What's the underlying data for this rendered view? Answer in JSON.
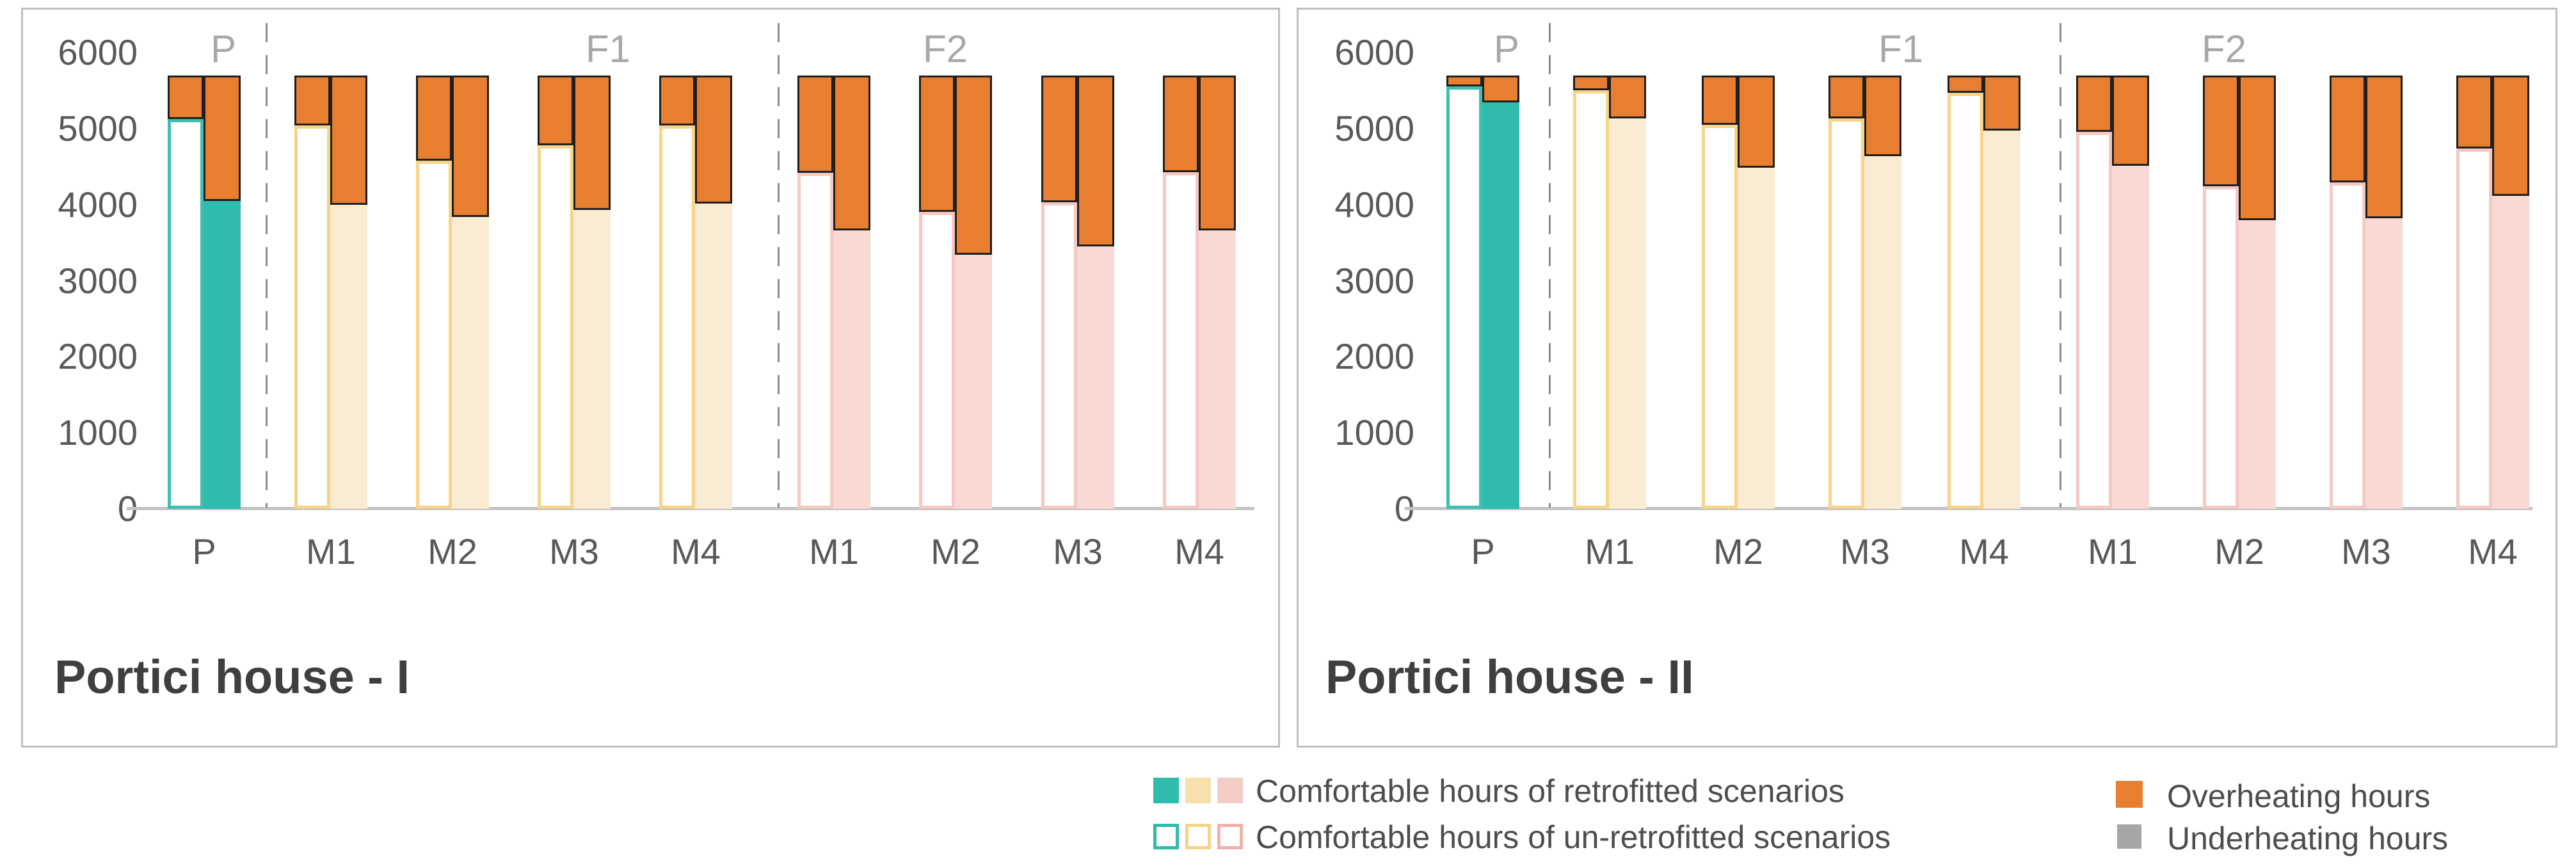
{
  "chart_data": [
    {
      "type": "bar",
      "title": "Portici house - I",
      "ylabel": "",
      "xlabel": "",
      "ylim": [
        0,
        6000
      ],
      "yticks": [
        6000,
        5000,
        4000,
        3000,
        2000,
        1000,
        0
      ],
      "grid": false,
      "bar_total_hours": 5700,
      "groups": [
        {
          "label": "P",
          "palette": "teal",
          "scenarios": [
            {
              "label": "P",
              "unretrofitted_comfortable": 5130,
              "unretrofitted_overheating": 570,
              "retrofitted_comfortable": 4050,
              "retrofitted_overheating": 1650
            }
          ]
        },
        {
          "label": "F1",
          "palette": "cream",
          "scenarios": [
            {
              "label": "M1",
              "unretrofitted_comfortable": 5040,
              "unretrofitted_overheating": 660,
              "retrofitted_comfortable": 4000,
              "retrofitted_overheating": 1700
            },
            {
              "label": "M2",
              "unretrofitted_comfortable": 4580,
              "unretrofitted_overheating": 1120,
              "retrofitted_comfortable": 3840,
              "retrofitted_overheating": 1860
            },
            {
              "label": "M3",
              "unretrofitted_comfortable": 4780,
              "unretrofitted_overheating": 920,
              "retrofitted_comfortable": 3930,
              "retrofitted_overheating": 1770
            },
            {
              "label": "M4",
              "unretrofitted_comfortable": 5040,
              "unretrofitted_overheating": 660,
              "retrofitted_comfortable": 4020,
              "retrofitted_overheating": 1680
            }
          ]
        },
        {
          "label": "F2",
          "palette": "pink",
          "scenarios": [
            {
              "label": "M1",
              "unretrofitted_comfortable": 4420,
              "unretrofitted_overheating": 1280,
              "retrofitted_comfortable": 3660,
              "retrofitted_overheating": 2040
            },
            {
              "label": "M2",
              "unretrofitted_comfortable": 3910,
              "unretrofitted_overheating": 1790,
              "retrofitted_comfortable": 3340,
              "retrofitted_overheating": 2360
            },
            {
              "label": "M3",
              "unretrofitted_comfortable": 4030,
              "unretrofitted_overheating": 1670,
              "retrofitted_comfortable": 3450,
              "retrofitted_overheating": 2250
            },
            {
              "label": "M4",
              "unretrofitted_comfortable": 4430,
              "unretrofitted_overheating": 1270,
              "retrofitted_comfortable": 3660,
              "retrofitted_overheating": 2040
            }
          ]
        }
      ]
    },
    {
      "type": "bar",
      "title": "Portici house - II",
      "ylabel": "",
      "xlabel": "",
      "ylim": [
        0,
        6000
      ],
      "yticks": [
        6000,
        5000,
        4000,
        3000,
        2000,
        1000,
        0
      ],
      "grid": false,
      "bar_total_hours": 5700,
      "groups": [
        {
          "label": "P",
          "palette": "teal",
          "scenarios": [
            {
              "label": "P",
              "unretrofitted_comfortable": 5560,
              "unretrofitted_overheating": 140,
              "retrofitted_comfortable": 5350,
              "retrofitted_overheating": 350
            }
          ]
        },
        {
          "label": "F1",
          "palette": "cream",
          "scenarios": [
            {
              "label": "M1",
              "unretrofitted_comfortable": 5510,
              "unretrofitted_overheating": 190,
              "retrofitted_comfortable": 5140,
              "retrofitted_overheating": 560
            },
            {
              "label": "M2",
              "unretrofitted_comfortable": 5050,
              "unretrofitted_overheating": 650,
              "retrofitted_comfortable": 4490,
              "retrofitted_overheating": 1210
            },
            {
              "label": "M3",
              "unretrofitted_comfortable": 5140,
              "unretrofitted_overheating": 560,
              "retrofitted_comfortable": 4640,
              "retrofitted_overheating": 1060
            },
            {
              "label": "M4",
              "unretrofitted_comfortable": 5470,
              "unretrofitted_overheating": 230,
              "retrofitted_comfortable": 4980,
              "retrofitted_overheating": 720
            }
          ]
        },
        {
          "label": "F2",
          "palette": "pink",
          "scenarios": [
            {
              "label": "M1",
              "unretrofitted_comfortable": 4960,
              "unretrofitted_overheating": 740,
              "retrofitted_comfortable": 4510,
              "retrofitted_overheating": 1190
            },
            {
              "label": "M2",
              "unretrofitted_comfortable": 4240,
              "unretrofitted_overheating": 1460,
              "retrofitted_comfortable": 3800,
              "retrofitted_overheating": 1900
            },
            {
              "label": "M3",
              "unretrofitted_comfortable": 4290,
              "unretrofitted_overheating": 1410,
              "retrofitted_comfortable": 3820,
              "retrofitted_overheating": 1880
            },
            {
              "label": "M4",
              "unretrofitted_comfortable": 4740,
              "unretrofitted_overheating": 960,
              "retrofitted_comfortable": 4120,
              "retrofitted_overheating": 1580
            }
          ]
        }
      ]
    }
  ],
  "legend": {
    "comfort_rows": [
      {
        "label": "Comfortable hours of retrofitted scenarios",
        "style": "filled"
      },
      {
        "label": "Comfortable hours of un-retrofitted scenarios",
        "style": "outlined"
      }
    ],
    "status_rows": [
      {
        "label": "Overheating hours",
        "color": "#e87e2f"
      },
      {
        "label": "Underheating hours",
        "color": "#a6a6a6"
      }
    ]
  },
  "colors": {
    "overheating": "#e87e2f",
    "underheating": "#a6a6a6",
    "segment_border": "#1f1f1f",
    "palettes": {
      "teal": {
        "fill": "#2fbcad",
        "outline": "#3fbfb1"
      },
      "cream": {
        "fill": "#faebd3",
        "outline": "#f7d488"
      },
      "pink": {
        "fill": "#f8d9d3",
        "outline": "#f5c9c2"
      }
    },
    "legend_swatch_fills": [
      "#2fbcad",
      "#f8e0ac",
      "#f4ccc6"
    ],
    "legend_swatch_outlines": [
      "#2fbcad",
      "#f6d38a",
      "#f0b1a9"
    ]
  }
}
